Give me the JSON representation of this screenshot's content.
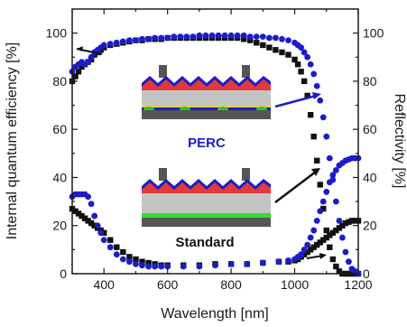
{
  "chart_data": {
    "type": "scatter",
    "xlabel": "Wavelength [nm]",
    "ylabel_left": "Internal quantum efficiency [%]",
    "ylabel_right": "Reflectivity [%]",
    "xlim": [
      300,
      1200
    ],
    "ylim": [
      0,
      110
    ],
    "x_ticks": [
      400,
      600,
      800,
      1000,
      1200
    ],
    "y_ticks": [
      0,
      20,
      40,
      60,
      80,
      100
    ],
    "grid": false,
    "colors": {
      "perc": "#1c1cc8",
      "standard": "#111111"
    },
    "series": [
      {
        "name": "PERC",
        "curve": "iqe",
        "marker": "circle",
        "x": [
          300,
          310,
          320,
          330,
          340,
          350,
          360,
          370,
          380,
          390,
          400,
          420,
          440,
          460,
          480,
          500,
          520,
          540,
          560,
          580,
          600,
          620,
          640,
          660,
          680,
          700,
          720,
          740,
          760,
          780,
          800,
          820,
          840,
          860,
          880,
          900,
          920,
          940,
          960,
          980,
          1000,
          1010,
          1020,
          1030,
          1040,
          1050,
          1060,
          1070,
          1080,
          1090,
          1100,
          1110,
          1120,
          1130,
          1140,
          1150,
          1160,
          1170,
          1180,
          1190,
          1200
        ],
        "y": [
          84,
          86,
          87,
          88,
          87,
          88,
          90,
          92,
          93,
          94,
          95,
          95.5,
          96,
          96.5,
          97,
          97,
          97.5,
          97.5,
          98,
          98,
          98,
          98.5,
          98.5,
          98.5,
          98.5,
          99,
          99,
          99,
          99,
          99,
          99,
          99,
          99,
          98.5,
          98.5,
          98.5,
          98,
          98,
          97.5,
          97,
          96,
          95,
          94,
          92,
          90,
          87,
          83,
          78,
          72,
          65,
          57,
          48,
          39,
          30,
          22,
          15,
          9,
          5,
          2,
          1,
          0
        ]
      },
      {
        "name": "Standard",
        "curve": "iqe",
        "marker": "square",
        "x": [
          300,
          310,
          320,
          330,
          340,
          350,
          360,
          370,
          380,
          390,
          400,
          420,
          440,
          460,
          480,
          500,
          520,
          540,
          560,
          580,
          600,
          620,
          640,
          660,
          680,
          700,
          720,
          740,
          760,
          780,
          800,
          820,
          840,
          860,
          880,
          900,
          920,
          940,
          960,
          980,
          1000,
          1010,
          1020,
          1030,
          1040,
          1050,
          1060,
          1070,
          1080,
          1090,
          1100,
          1110,
          1120,
          1130,
          1140,
          1150,
          1160,
          1170,
          1180,
          1190,
          1200
        ],
        "y": [
          80,
          82,
          84,
          86,
          87,
          88,
          89,
          91,
          92,
          93,
          94,
          95,
          95.5,
          96,
          96.5,
          97,
          97,
          97.5,
          97.5,
          97.5,
          98,
          98,
          98,
          98,
          98,
          98,
          98,
          98,
          98,
          98,
          98,
          98,
          97.5,
          97,
          96,
          95,
          94,
          93,
          92,
          91,
          89,
          87,
          84,
          80,
          74,
          66,
          57,
          47,
          37,
          27,
          18,
          11,
          6,
          3,
          1,
          0,
          0,
          0,
          0,
          0,
          0
        ]
      },
      {
        "name": "PERC",
        "curve": "reflectivity",
        "marker": "circle",
        "x": [
          300,
          310,
          320,
          330,
          340,
          350,
          360,
          370,
          380,
          390,
          400,
          420,
          440,
          460,
          480,
          500,
          520,
          540,
          560,
          580,
          600,
          650,
          700,
          750,
          800,
          850,
          900,
          950,
          980,
          1000,
          1010,
          1020,
          1030,
          1040,
          1050,
          1060,
          1070,
          1080,
          1090,
          1100,
          1110,
          1120,
          1130,
          1140,
          1150,
          1160,
          1170,
          1180,
          1190,
          1200
        ],
        "y": [
          32,
          33,
          33,
          33,
          33,
          32,
          29,
          24,
          20,
          17,
          14,
          11,
          8,
          6,
          5,
          4,
          3.5,
          3,
          3,
          3,
          3,
          3,
          3,
          3.5,
          4,
          4,
          4.5,
          5,
          5.5,
          6,
          7,
          8,
          10,
          12,
          15,
          18,
          22,
          26,
          30,
          34,
          38,
          41,
          43,
          45,
          46,
          47,
          47.5,
          48,
          48,
          48
        ]
      },
      {
        "name": "Standard",
        "curve": "reflectivity",
        "marker": "square",
        "x": [
          300,
          310,
          320,
          330,
          340,
          350,
          360,
          370,
          380,
          390,
          400,
          420,
          440,
          460,
          480,
          500,
          520,
          540,
          560,
          580,
          600,
          650,
          700,
          750,
          800,
          850,
          900,
          950,
          980,
          1000,
          1010,
          1020,
          1030,
          1040,
          1050,
          1060,
          1070,
          1080,
          1090,
          1100,
          1110,
          1120,
          1130,
          1140,
          1150,
          1160,
          1170,
          1180,
          1190,
          1200
        ],
        "y": [
          27,
          26,
          25,
          24,
          23,
          22,
          21,
          20,
          19,
          18,
          17,
          14,
          11,
          9,
          7,
          6,
          5,
          4.5,
          4,
          3.5,
          3.5,
          3.5,
          3.5,
          4,
          4,
          4,
          4.5,
          5,
          5,
          5.5,
          6,
          7,
          8,
          9,
          10,
          11,
          12,
          13,
          14,
          15,
          16,
          17,
          18,
          19,
          20,
          21,
          21.5,
          22,
          22,
          22
        ]
      }
    ],
    "annotations": {
      "inset_top_label": "PERC",
      "inset_bottom_label": "Standard"
    }
  }
}
